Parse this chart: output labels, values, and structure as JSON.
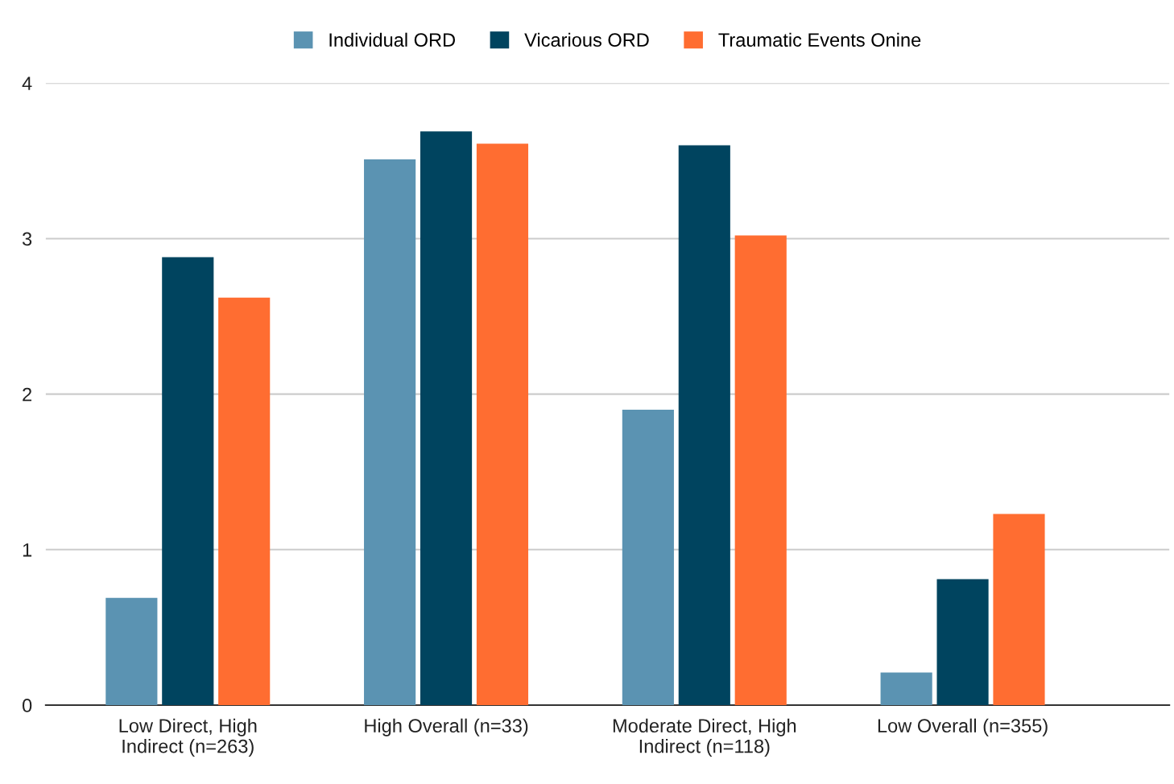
{
  "chart_data": {
    "type": "bar",
    "categories": [
      "Low Direct, High Indirect (n=263)",
      "High Overall (n=33)",
      "Moderate Direct, High Indirect (n=118)",
      "Low Overall (n=355)"
    ],
    "series": [
      {
        "name": "Individual ORD",
        "color": "#5b93b2",
        "values": [
          0.69,
          3.51,
          1.9,
          0.21
        ]
      },
      {
        "name": "Vicarious ORD",
        "color": "#00445f",
        "values": [
          2.88,
          3.69,
          3.6,
          0.81
        ]
      },
      {
        "name": "Traumatic Events Onine",
        "color": "#ff6d31",
        "values": [
          2.62,
          3.61,
          3.02,
          1.23
        ]
      }
    ],
    "ylim": [
      0,
      4
    ],
    "yticks": [
      0,
      1,
      2,
      3,
      4
    ],
    "grid": "y",
    "legend": "top"
  }
}
